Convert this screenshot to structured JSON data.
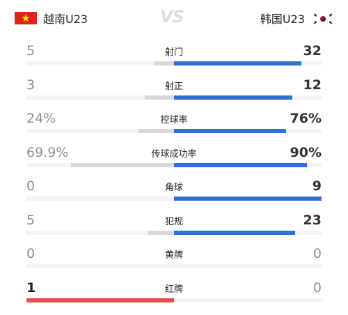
{
  "header": {
    "home_team": "越南U23",
    "away_team": "韩国U23",
    "vs": "VS"
  },
  "stats": [
    {
      "label": "射门",
      "home": "5",
      "away": "32",
      "home_pct": 13.5,
      "away_pct": 86.5
    },
    {
      "label": "射正",
      "home": "3",
      "away": "12",
      "home_pct": 20,
      "away_pct": 80
    },
    {
      "label": "控球率",
      "home": "24%",
      "away": "76%",
      "home_pct": 24,
      "away_pct": 76
    },
    {
      "label": "传球成功率",
      "home": "69.9%",
      "away": "90%",
      "home_pct": 70,
      "away_pct": 90
    },
    {
      "label": "角球",
      "home": "0",
      "away": "9",
      "home_pct": 0,
      "away_pct": 100
    },
    {
      "label": "犯规",
      "home": "5",
      "away": "23",
      "home_pct": 18,
      "away_pct": 82
    },
    {
      "label": "黄牌",
      "home": "0",
      "away": "0",
      "home_pct": 0,
      "away_pct": 0
    },
    {
      "label": "红牌",
      "home": "1",
      "away": "0",
      "home_pct": 100,
      "away_pct": 0
    }
  ],
  "colors": {
    "home_bar": "#d5d8dd",
    "home_bar_highlight": "#e94b4b",
    "away_bar": "#2f6fd8",
    "track": "#f2f3f5",
    "vietnam_flag": "#da251d",
    "vietnam_star": "#ffde00"
  }
}
